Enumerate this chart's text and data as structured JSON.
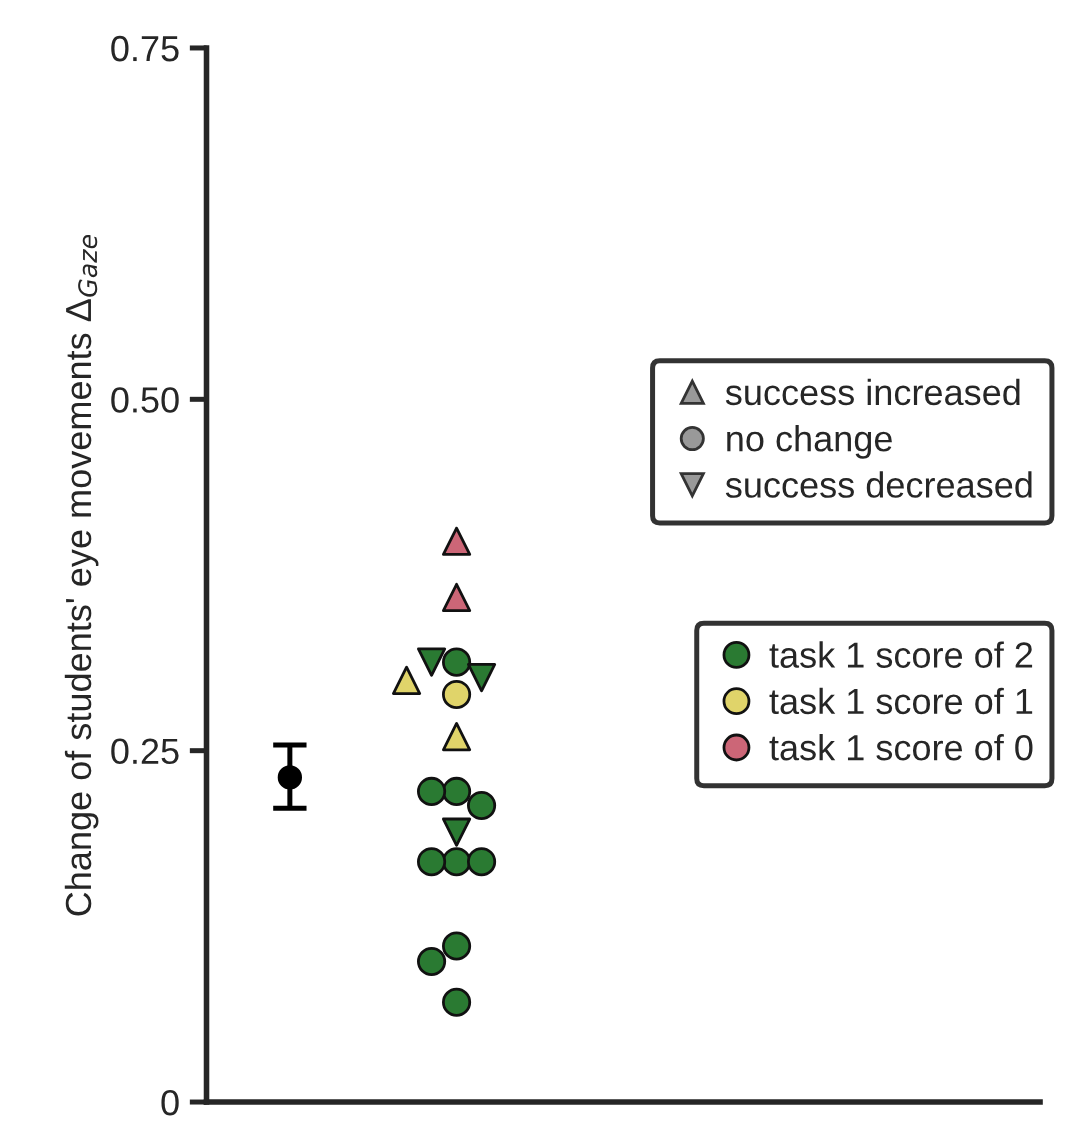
{
  "chart_data": {
    "type": "scatter",
    "ylabel": "Change of students' eye movements Δ$_{Gaze}$",
    "categories": [
      null,
      null,
      null,
      null,
      null
    ],
    "ylim": [
      0,
      0.75
    ],
    "yticks": [
      0,
      0.25,
      {
        "value": 0.5,
        "label": "0.50"
      },
      0.75
    ],
    "grid": false,
    "legend": "right",
    "series": [
      {
        "color": "#000000",
        "marker": "circle",
        "values": [
          0.231,
          null,
          null,
          null,
          null
        ],
        "errors": [
          [
            0.209,
            0.254
          ],
          null,
          null,
          null,
          null
        ]
      },
      {
        "name": "task 1 score of 2",
        "color": "#2a7a32",
        "marker": "circle",
        "values": [
          null,
          0.313,
          null,
          null,
          null
        ]
      },
      {
        "name": "task 1 score of 1",
        "color": "#e0d46a",
        "marker": "circle",
        "values": [
          null,
          0.29,
          null,
          null,
          null
        ]
      },
      {
        "name": "task 1 score of 0",
        "color": "#cc6677",
        "marker": "triangle",
        "values": [
          null,
          0.399,
          null,
          null,
          null
        ]
      },
      {
        "color": "#cc6677",
        "marker": "triangle",
        "values": [
          null,
          0.359,
          null,
          null,
          null
        ]
      },
      {
        "color": "#2a7a32",
        "marker": "triangle_down",
        "values": [
          null,
          0.313,
          null,
          null,
          null
        ]
      },
      {
        "color": "#2a7a32",
        "marker": "triangle_down",
        "values": [
          null,
          0.302,
          null,
          null,
          null
        ]
      },
      {
        "color": "#e0d46a",
        "marker": "triangle",
        "values": [
          null,
          0.3,
          null,
          null,
          null
        ]
      },
      {
        "color": "#e0d46a",
        "marker": "triangle",
        "values": [
          null,
          0.26,
          null,
          null,
          null
        ]
      },
      {
        "color": "#2a7a32",
        "marker": "circle",
        "values": [
          null,
          0.221,
          null,
          null,
          null
        ]
      },
      {
        "color": "#2a7a32",
        "marker": "circle",
        "values": [
          null,
          0.221,
          null,
          null,
          null
        ]
      },
      {
        "color": "#2a7a32",
        "marker": "circle",
        "values": [
          null,
          0.211,
          null,
          null,
          null
        ]
      },
      {
        "color": "#2a7a32",
        "marker": "triangle_down",
        "values": [
          null,
          0.192,
          null,
          null,
          null
        ]
      },
      {
        "color": "#2a7a32",
        "marker": "circle",
        "values": [
          null,
          0.171,
          null,
          null,
          null
        ]
      },
      {
        "color": "#2a7a32",
        "marker": "circle",
        "values": [
          null,
          0.171,
          null,
          null,
          null
        ]
      },
      {
        "color": "#2a7a32",
        "marker": "circle",
        "values": [
          null,
          0.171,
          null,
          null,
          null
        ]
      },
      {
        "color": "#2a7a32",
        "marker": "circle",
        "values": [
          null,
          0.111,
          null,
          null,
          null
        ]
      },
      {
        "color": "#2a7a32",
        "marker": "circle",
        "values": [
          null,
          0.1,
          null,
          null,
          null
        ]
      },
      {
        "color": "#2a7a32",
        "marker": "circle",
        "values": [
          null,
          0.071,
          null,
          null,
          null
        ]
      },
      {
        "name": "success increased",
        "color": "#999999",
        "marker": "triangle",
        "values": [
          null,
          null,
          null,
          null,
          null
        ]
      },
      {
        "name": "no change",
        "color": "#999999",
        "marker": "circle",
        "values": [
          null,
          null,
          null,
          null,
          null
        ]
      },
      {
        "name": "success decreased",
        "color": "#999999",
        "marker": "triangle_down",
        "values": [
          null,
          null,
          null,
          null,
          null
        ]
      }
    ]
  }
}
